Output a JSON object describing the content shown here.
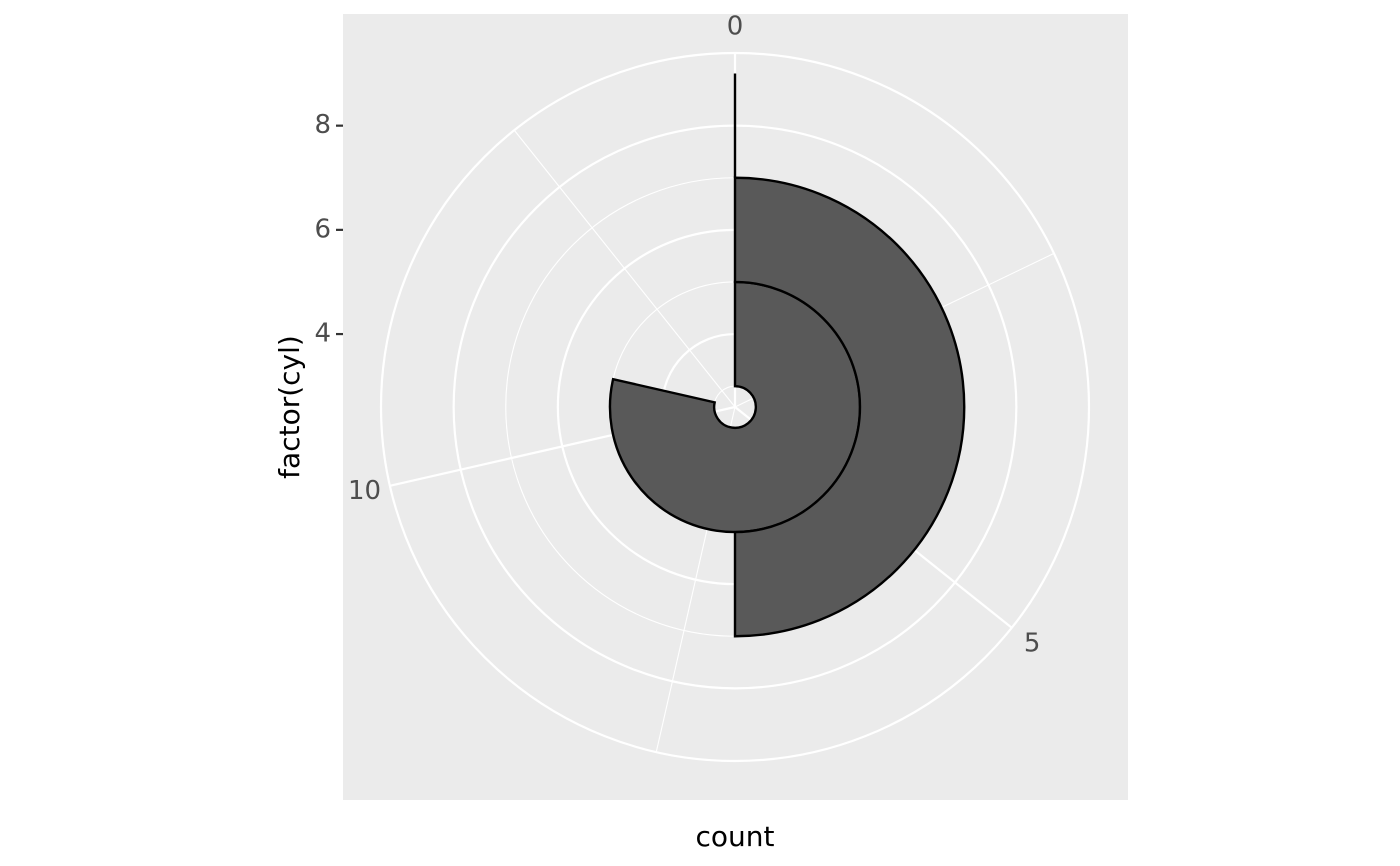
{
  "chart_data": {
    "type": "bar",
    "coord": "polar",
    "theta_axis": "count",
    "xlabel": "count",
    "ylabel": "factor(cyl)",
    "categories": [
      "4",
      "6",
      "8"
    ],
    "values": [
      11,
      7,
      14
    ],
    "theta_ticks": [
      "0",
      "5",
      "10"
    ],
    "theta_tick_values": [
      0,
      5,
      10
    ],
    "theta_range": [
      0,
      14
    ],
    "radial_ticks": [
      "4",
      "6",
      "8"
    ],
    "radial_tick_values": [
      4,
      6,
      8
    ],
    "radial_range": [
      2.6,
      8.6
    ],
    "colors": {
      "panel_background": "#ebebeb",
      "grid": "#ffffff",
      "bar_fill": "#595959",
      "bar_outline": "#000000",
      "tick_text": "#4d4d4d"
    }
  }
}
